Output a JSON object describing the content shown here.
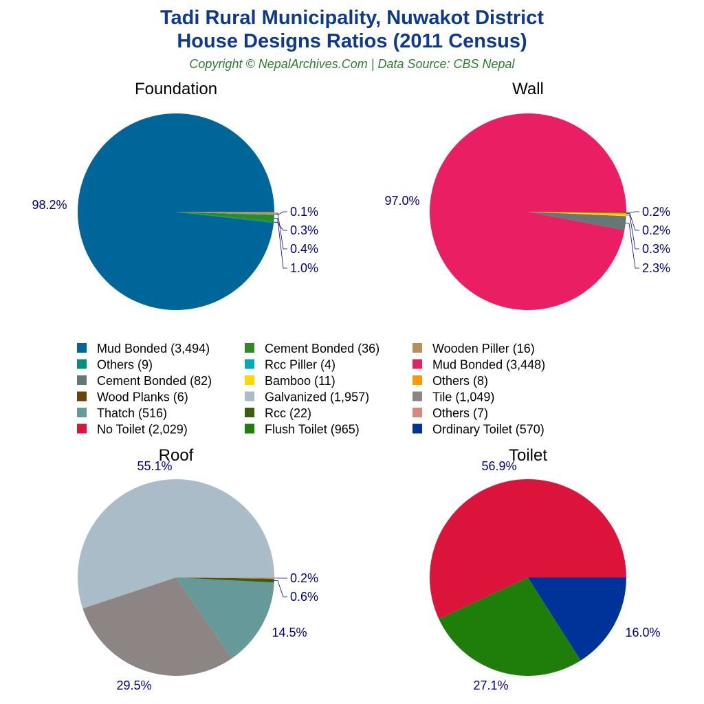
{
  "header": {
    "title_line1": "Tadi Rural Municipality, Nuwakot District",
    "title_line2": "House Designs Ratios (2011 Census)",
    "subtitle": "Copyright © NepalArchives.Com | Data Source: CBS Nepal"
  },
  "chart_data": [
    {
      "type": "pie",
      "title": "Foundation",
      "slices": [
        {
          "name": "Mud Bonded",
          "value": 3494,
          "label": "98.2%",
          "color": "#006699"
        },
        {
          "name": "Others",
          "value": 9,
          "label": "0.3%",
          "color": "#00917c"
        },
        {
          "name": "Cement Bonded",
          "value": 36,
          "label": "1.0%",
          "color": "#2e8b20"
        },
        {
          "name": "Rcc Piller",
          "value": 4,
          "label": "0.1%",
          "color": "#00aabb"
        },
        {
          "name": "Wooden Piller",
          "value": 16,
          "label": "0.4%",
          "color": "#b8915a"
        }
      ]
    },
    {
      "type": "pie",
      "title": "Wall",
      "slices": [
        {
          "name": "Mud Bonded",
          "value": 3448,
          "label": "97.0%",
          "color": "#e91e63"
        },
        {
          "name": "Cement Bonded",
          "value": 82,
          "label": "2.3%",
          "color": "#667777"
        },
        {
          "name": "Bamboo",
          "value": 11,
          "label": "0.3%",
          "color": "#ffd700"
        },
        {
          "name": "Others",
          "value": 8,
          "label": "0.2%",
          "color": "#ff9900"
        },
        {
          "name": "Wood Planks",
          "value": 6,
          "label": "0.2%",
          "color": "#6b4406"
        }
      ]
    },
    {
      "type": "pie",
      "title": "Roof",
      "slices": [
        {
          "name": "Galvanized",
          "value": 1957,
          "label": "55.1%",
          "color": "#a9bcc7"
        },
        {
          "name": "Tile",
          "value": 1049,
          "label": "29.5%",
          "color": "#8c8583"
        },
        {
          "name": "Thatch",
          "value": 516,
          "label": "14.5%",
          "color": "#66999a"
        },
        {
          "name": "Rcc",
          "value": 22,
          "label": "0.6%",
          "color": "#3b5e0e"
        },
        {
          "name": "Others",
          "value": 7,
          "label": "0.2%",
          "color": "#d98880"
        }
      ]
    },
    {
      "type": "pie",
      "title": "Toilet",
      "slices": [
        {
          "name": "No Toilet",
          "value": 2029,
          "label": "56.9%",
          "color": "#dc143c"
        },
        {
          "name": "Flush Toilet",
          "value": 965,
          "label": "27.1%",
          "color": "#1f7d0a"
        },
        {
          "name": "Ordinary Toilet",
          "value": 570,
          "label": "16.0%",
          "color": "#003399"
        }
      ]
    }
  ],
  "legend": [
    {
      "label": "Mud Bonded (3,494)",
      "color": "#006699"
    },
    {
      "label": "Others (9)",
      "color": "#00917c"
    },
    {
      "label": "Cement Bonded (82)",
      "color": "#667777"
    },
    {
      "label": "Wood Planks (6)",
      "color": "#6b4406"
    },
    {
      "label": "Thatch (516)",
      "color": "#66999a"
    },
    {
      "label": "No Toilet (2,029)",
      "color": "#dc143c"
    },
    {
      "label": "Cement Bonded (36)",
      "color": "#2e8b20"
    },
    {
      "label": "Rcc Piller (4)",
      "color": "#00aabb"
    },
    {
      "label": "Bamboo (11)",
      "color": "#ffd700"
    },
    {
      "label": "Galvanized (1,957)",
      "color": "#a9bcc7"
    },
    {
      "label": "Rcc (22)",
      "color": "#3b5e0e"
    },
    {
      "label": "Flush Toilet (965)",
      "color": "#1f7d0a"
    },
    {
      "label": "Wooden Piller (16)",
      "color": "#b8915a"
    },
    {
      "label": "Mud Bonded (3,448)",
      "color": "#e91e63"
    },
    {
      "label": "Others (8)",
      "color": "#ff9900"
    },
    {
      "label": "Tile (1,049)",
      "color": "#8c8583"
    },
    {
      "label": "Others (7)",
      "color": "#d98880"
    },
    {
      "label": "Ordinary Toilet (570)",
      "color": "#003399"
    }
  ]
}
